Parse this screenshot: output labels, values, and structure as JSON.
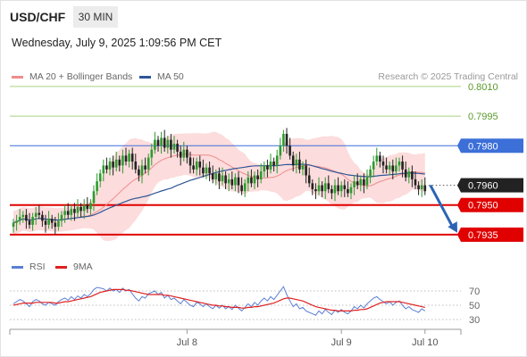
{
  "header": {
    "pair": "USD/CHF",
    "timeframe": "30 MIN",
    "datetime": "Wednesday, July 9, 2025 1:09:56 PM CET",
    "credit": "Research © 2025 Trading Central"
  },
  "legend": {
    "bollinger": {
      "label": "MA 20 + Bollinger Bands",
      "color": "#f08c8c"
    },
    "ma50": {
      "label": "MA 50",
      "color": "#2f5597"
    }
  },
  "rsi_legend": {
    "rsi": {
      "label": "RSI",
      "color": "#5b7fd6"
    },
    "ma9": {
      "label": "9MA",
      "color": "#e02020"
    }
  },
  "chart_data": [
    {
      "type": "candlestick",
      "x_tick_labels": [
        "Jul 8",
        "Jul 9",
        "Jul 10"
      ],
      "ylim": [
        0.793,
        0.8014
      ],
      "levels": [
        {
          "value": 0.801,
          "label": "0.8010",
          "style": "green-line"
        },
        {
          "value": 0.7995,
          "label": "0.7995",
          "style": "green-line"
        },
        {
          "value": 0.798,
          "label": "0.7980",
          "style": "blue-line"
        },
        {
          "value": 0.796,
          "label": "0.7960",
          "style": "price-dotted"
        },
        {
          "value": 0.795,
          "label": "0.7950",
          "style": "red-line"
        },
        {
          "value": 0.7935,
          "label": "0.7935",
          "style": "red-line"
        }
      ],
      "colors": {
        "up": "#2e9a2e",
        "down": "#222222",
        "band": "#fbd0d0",
        "ma20": "#f08c8c",
        "ma50": "#2f5597",
        "arrow": "#2c64b5",
        "green": "#a6d281",
        "red": "#e00000",
        "blue": "#3c6fd8"
      },
      "closes": [
        0.7941,
        0.7942,
        0.7944,
        0.7945,
        0.7942,
        0.794,
        0.7944,
        0.7946,
        0.7945,
        0.7942,
        0.794,
        0.7943,
        0.7941,
        0.7939,
        0.7942,
        0.7945,
        0.7947,
        0.7945,
        0.7948,
        0.7946,
        0.7949,
        0.7947,
        0.795,
        0.7948,
        0.7951,
        0.7957,
        0.7962,
        0.7966,
        0.797,
        0.7968,
        0.7972,
        0.7969,
        0.7973,
        0.797,
        0.7975,
        0.7972,
        0.7976,
        0.7972,
        0.7968,
        0.7965,
        0.797,
        0.7968,
        0.7974,
        0.7978,
        0.7983,
        0.798,
        0.7984,
        0.7979,
        0.7983,
        0.7978,
        0.7981,
        0.7977,
        0.7974,
        0.7978,
        0.7974,
        0.797,
        0.7968,
        0.7972,
        0.7969,
        0.7966,
        0.7969,
        0.7966,
        0.7963,
        0.7966,
        0.7962,
        0.7965,
        0.7961,
        0.7963,
        0.796,
        0.7964,
        0.796,
        0.7957,
        0.7961,
        0.7964,
        0.7961,
        0.7965,
        0.7963,
        0.7967,
        0.797,
        0.7968,
        0.7972,
        0.797,
        0.7975,
        0.798,
        0.7986,
        0.798,
        0.7975,
        0.797,
        0.7973,
        0.7968,
        0.797,
        0.7965,
        0.7961,
        0.7958,
        0.7957,
        0.796,
        0.7957,
        0.7961,
        0.7958,
        0.7956,
        0.796,
        0.7957,
        0.796,
        0.7958,
        0.7956,
        0.7959,
        0.7962,
        0.796,
        0.7963,
        0.796,
        0.7964,
        0.7968,
        0.7972,
        0.7975,
        0.7972,
        0.797,
        0.7968,
        0.797,
        0.7967,
        0.797,
        0.7972,
        0.7968,
        0.7964,
        0.7967,
        0.7963,
        0.796,
        0.7958,
        0.796,
        0.7957
      ],
      "rsi": {
        "levels": [
          70,
          50,
          30
        ],
        "ylim": [
          25,
          80
        ],
        "rsi_values": [
          52,
          55,
          58,
          56,
          52,
          48,
          55,
          58,
          56,
          52,
          50,
          54,
          52,
          50,
          55,
          58,
          60,
          57,
          62,
          58,
          63,
          60,
          65,
          62,
          66,
          72,
          75,
          74,
          73,
          70,
          74,
          70,
          72,
          68,
          74,
          70,
          72,
          66,
          60,
          56,
          62,
          60,
          66,
          68,
          70,
          65,
          68,
          60,
          64,
          58,
          60,
          56,
          52,
          58,
          54,
          50,
          48,
          54,
          52,
          48,
          52,
          48,
          45,
          50,
          46,
          50,
          45,
          48,
          44,
          50,
          46,
          42,
          47,
          52,
          48,
          54,
          50,
          56,
          60,
          56,
          62,
          58,
          64,
          70,
          76,
          65,
          56,
          48,
          52,
          45,
          47,
          42,
          40,
          38,
          36,
          42,
          38,
          44,
          40,
          37,
          43,
          40,
          44,
          40,
          38,
          42,
          48,
          45,
          50,
          46,
          52,
          56,
          60,
          62,
          58,
          55,
          52,
          55,
          50,
          54,
          56,
          50,
          45,
          48,
          44,
          42,
          40,
          45,
          42
        ],
        "ma9_values": [
          50,
          51,
          52,
          53,
          53,
          53,
          53,
          54,
          54,
          54,
          54,
          54,
          54,
          53,
          53,
          54,
          55,
          55,
          56,
          57,
          58,
          59,
          60,
          61,
          62,
          64,
          66,
          68,
          69,
          70,
          71,
          72,
          72,
          72,
          72,
          71,
          71,
          70,
          69,
          68,
          67,
          66,
          65,
          65,
          65,
          65,
          65,
          64,
          64,
          63,
          62,
          61,
          60,
          59,
          58,
          57,
          56,
          55,
          54,
          53,
          52,
          51,
          50,
          50,
          49,
          49,
          48,
          48,
          47,
          47,
          47,
          46,
          46,
          47,
          47,
          48,
          48,
          49,
          50,
          51,
          52,
          53,
          55,
          57,
          59,
          60,
          60,
          59,
          58,
          57,
          56,
          54,
          52,
          50,
          48,
          47,
          46,
          45,
          44,
          43,
          43,
          42,
          42,
          42,
          42,
          42,
          43,
          43,
          44,
          44,
          45,
          47,
          49,
          51,
          53,
          54,
          55,
          55,
          55,
          55,
          55,
          54,
          53,
          52,
          51,
          50,
          49,
          48,
          47
        ]
      }
    }
  ]
}
